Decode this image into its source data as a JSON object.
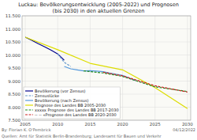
{
  "chart_data": {
    "type": "line",
    "title": "Luckau: Bevölkerungsentwicklung (2005-2022) und Prognosen\n(bis 2030) in den aktuellen Grenzen",
    "xlim": [
      2004.5,
      2030.5
    ],
    "ylim": [
      7500,
      11500
    ],
    "xticks": [
      2005,
      2010,
      2015,
      2020,
      2025,
      2030
    ],
    "yticks": [
      {
        "value": 7500,
        "label": "7.500"
      },
      {
        "value": 8000,
        "label": "8.000"
      },
      {
        "value": 8500,
        "label": "8.500"
      },
      {
        "value": 9000,
        "label": "9.000"
      },
      {
        "value": 9500,
        "label": "9.500"
      },
      {
        "value": 10000,
        "label": "10.000"
      },
      {
        "value": 10500,
        "label": "10.500"
      },
      {
        "value": 11000,
        "label": "11.000"
      },
      {
        "value": 11500,
        "label": "11.500"
      }
    ],
    "grid": true,
    "legend": "lower left",
    "series": [
      {
        "name": "Bevölkerung (vor Zensus)",
        "color": "#00008B",
        "line_style": "solid",
        "x": [
          2005,
          2006,
          2007,
          2008,
          2009,
          2010,
          2011
        ],
        "values": [
          10680,
          10560,
          10430,
          10310,
          10180,
          10040,
          9800
        ]
      },
      {
        "name": "Zensuslücke",
        "color": "#6699CC",
        "line_style": "dashed",
        "x": [
          2010,
          2011,
          2012
        ],
        "values": [
          10040,
          9720,
          9560
        ]
      },
      {
        "name": "Bevölkerung (nach Zensus)",
        "color": "#5599DD",
        "line_style": "solid",
        "x": [
          2011,
          2012,
          2013,
          2014,
          2015,
          2016,
          2017,
          2018,
          2019,
          2020,
          2021,
          2022
        ],
        "values": [
          9560,
          9470,
          9430,
          9390,
          9400,
          9380,
          9360,
          9310,
          9260,
          9220,
          9120,
          9020
        ]
      },
      {
        "name": "Prognose des Landes BB 2005-2030",
        "color": "#DDDD00",
        "line_style": "solid",
        "x": [
          2005,
          2010,
          2015,
          2020,
          2025,
          2030
        ],
        "values": [
          10680,
          10200,
          9680,
          9430,
          8750,
          7950
        ]
      },
      {
        "name": "xxxxx Prognose des Landes BB 2017-2030",
        "color": "#228B22",
        "line_style": "dashed",
        "x": [
          2014,
          2017,
          2020,
          2025,
          2030
        ],
        "values": [
          9390,
          9310,
          9180,
          8780,
          8600
        ]
      },
      {
        "name": "-- -- «Prognose des Landes BB 2020-2030",
        "color": "#CC2222",
        "line_style": "dashed",
        "x": [
          2017,
          2020,
          2025,
          2030
        ],
        "values": [
          9340,
          9200,
          8820,
          8580
        ]
      }
    ],
    "annotations": [
      "By: Florian K. O'Pembrick",
      "Quellen: Amt für Statistik Berlin-Brandenburg; Landesamt für Bauen und Verkehr",
      "04/12/2022"
    ]
  }
}
